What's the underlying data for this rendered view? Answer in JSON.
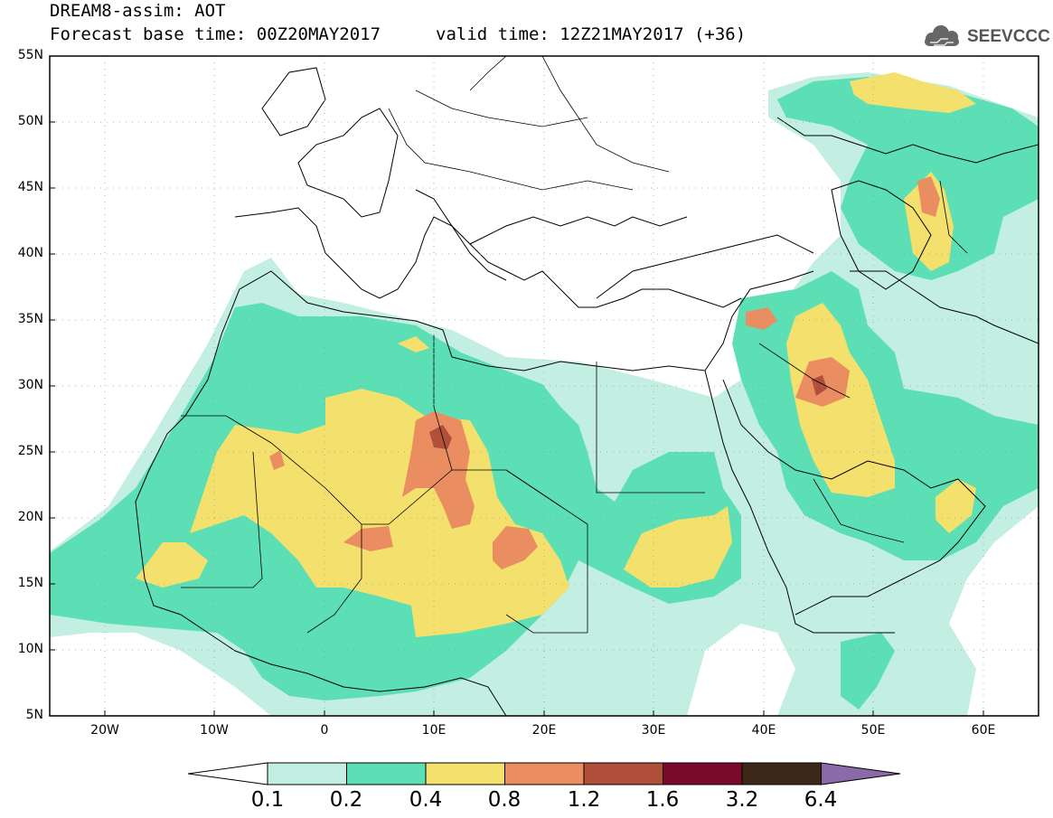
{
  "header": {
    "title_line1": "DREAM8-assim: AOT",
    "title_line2": "Forecast base time: 00Z20MAY2017",
    "valid_time": "valid time: 12Z21MAY2017 (+36)",
    "logo_text": "SEEVCCC",
    "logo_icon": "cloud-icon"
  },
  "axes": {
    "lat_labels": [
      "55N",
      "50N",
      "45N",
      "40N",
      "35N",
      "30N",
      "25N",
      "20N",
      "15N",
      "10N",
      "5N"
    ],
    "lon_labels": [
      "20W",
      "10W",
      "0",
      "10E",
      "20E",
      "30E",
      "40E",
      "50E",
      "60E"
    ],
    "lat_range": [
      5,
      55
    ],
    "lon_range": [
      -25,
      65
    ],
    "grid": true
  },
  "colorbar": {
    "labels": [
      "0.1",
      "0.2",
      "0.4",
      "0.8",
      "1.2",
      "1.6",
      "3.2",
      "6.4"
    ],
    "colors": [
      "#ffffff",
      "#c3eee2",
      "#5ddfb6",
      "#f4e06c",
      "#ea8e62",
      "#b0503a",
      "#7a0a2a",
      "#3c2818",
      "#8a6aa8"
    ]
  },
  "field_colors": {
    "lvl1": "#c3eee2",
    "lvl2": "#5ddfb6",
    "lvl3": "#f4e06c",
    "lvl4": "#ea8e62",
    "lvl5": "#b0503a"
  }
}
